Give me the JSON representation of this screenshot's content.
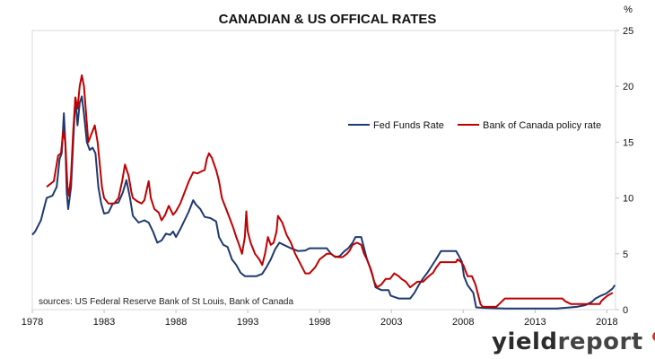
{
  "chart_data": {
    "type": "line",
    "title": "CANADIAN & US OFFICAL RATES",
    "y_unit_label": "%",
    "ylim": [
      0,
      25
    ],
    "y_ticks": [
      0,
      5,
      10,
      15,
      20,
      25
    ],
    "y_axis_side": "right",
    "xlim": [
      1978,
      2018.6
    ],
    "x_ticks": [
      1978,
      1983,
      1988,
      1993,
      1998,
      2003,
      2008,
      2013,
      2018
    ],
    "grid": false,
    "legend_placement": "center-right",
    "source_note": "sources: US Federal Reserve Bank of St Louis, Bank of Canada",
    "series": [
      {
        "name": "Fed Funds Rate",
        "color": "#1f3a6e",
        "points": [
          [
            1978.0,
            6.7
          ],
          [
            1978.2,
            7.0
          ],
          [
            1978.4,
            7.5
          ],
          [
            1978.6,
            8.0
          ],
          [
            1978.8,
            9.0
          ],
          [
            1979.0,
            10.0
          ],
          [
            1979.4,
            10.2
          ],
          [
            1979.7,
            11.0
          ],
          [
            1979.9,
            13.5
          ],
          [
            1980.05,
            14.0
          ],
          [
            1980.2,
            17.6
          ],
          [
            1980.3,
            15.0
          ],
          [
            1980.4,
            10.5
          ],
          [
            1980.5,
            9.0
          ],
          [
            1980.7,
            11.0
          ],
          [
            1980.85,
            15.0
          ],
          [
            1981.0,
            19.0
          ],
          [
            1981.15,
            16.5
          ],
          [
            1981.3,
            18.5
          ],
          [
            1981.45,
            19.1
          ],
          [
            1981.6,
            17.5
          ],
          [
            1981.8,
            15.0
          ],
          [
            1982.0,
            14.3
          ],
          [
            1982.2,
            14.5
          ],
          [
            1982.4,
            14.0
          ],
          [
            1982.6,
            11.0
          ],
          [
            1982.8,
            9.5
          ],
          [
            1983.0,
            8.6
          ],
          [
            1983.3,
            8.7
          ],
          [
            1983.6,
            9.5
          ],
          [
            1984.0,
            9.6
          ],
          [
            1984.3,
            10.5
          ],
          [
            1984.55,
            11.6
          ],
          [
            1984.8,
            10.0
          ],
          [
            1985.0,
            8.4
          ],
          [
            1985.4,
            7.8
          ],
          [
            1985.8,
            8.0
          ],
          [
            1986.1,
            7.8
          ],
          [
            1986.4,
            7.0
          ],
          [
            1986.7,
            6.0
          ],
          [
            1987.0,
            6.2
          ],
          [
            1987.3,
            6.8
          ],
          [
            1987.6,
            6.7
          ],
          [
            1987.8,
            7.0
          ],
          [
            1988.0,
            6.5
          ],
          [
            1988.3,
            7.2
          ],
          [
            1988.6,
            8.0
          ],
          [
            1988.9,
            8.8
          ],
          [
            1989.2,
            9.8
          ],
          [
            1989.4,
            9.4
          ],
          [
            1989.7,
            9.0
          ],
          [
            1990.0,
            8.3
          ],
          [
            1990.4,
            8.2
          ],
          [
            1990.8,
            7.9
          ],
          [
            1991.0,
            6.5
          ],
          [
            1991.3,
            5.8
          ],
          [
            1991.6,
            5.6
          ],
          [
            1991.9,
            4.5
          ],
          [
            1992.2,
            4.0
          ],
          [
            1992.5,
            3.3
          ],
          [
            1992.8,
            3.0
          ],
          [
            1993.2,
            3.0
          ],
          [
            1993.6,
            3.0
          ],
          [
            1994.0,
            3.2
          ],
          [
            1994.3,
            3.8
          ],
          [
            1994.6,
            4.5
          ],
          [
            1994.9,
            5.4
          ],
          [
            1995.2,
            6.0
          ],
          [
            1995.5,
            5.8
          ],
          [
            1996.0,
            5.5
          ],
          [
            1996.5,
            5.25
          ],
          [
            1997.0,
            5.3
          ],
          [
            1997.3,
            5.5
          ],
          [
            1997.9,
            5.5
          ],
          [
            1998.5,
            5.5
          ],
          [
            1998.8,
            5.0
          ],
          [
            1999.1,
            4.7
          ],
          [
            1999.4,
            4.8
          ],
          [
            1999.7,
            5.2
          ],
          [
            2000.0,
            5.5
          ],
          [
            2000.3,
            6.0
          ],
          [
            2000.5,
            6.5
          ],
          [
            2000.9,
            6.5
          ],
          [
            2001.1,
            5.5
          ],
          [
            2001.3,
            4.5
          ],
          [
            2001.5,
            3.8
          ],
          [
            2001.7,
            3.0
          ],
          [
            2001.9,
            2.0
          ],
          [
            2002.3,
            1.75
          ],
          [
            2002.8,
            1.75
          ],
          [
            2002.95,
            1.25
          ],
          [
            2003.5,
            1.0
          ],
          [
            2004.3,
            1.0
          ],
          [
            2004.6,
            1.5
          ],
          [
            2004.9,
            2.2
          ],
          [
            2005.2,
            2.8
          ],
          [
            2005.5,
            3.3
          ],
          [
            2005.8,
            3.9
          ],
          [
            2006.1,
            4.5
          ],
          [
            2006.45,
            5.25
          ],
          [
            2007.5,
            5.25
          ],
          [
            2007.7,
            4.8
          ],
          [
            2007.9,
            4.3
          ],
          [
            2008.05,
            3.0
          ],
          [
            2008.3,
            2.2
          ],
          [
            2008.7,
            1.5
          ],
          [
            2008.9,
            0.2
          ],
          [
            2009.5,
            0.15
          ],
          [
            2011.0,
            0.1
          ],
          [
            2013.0,
            0.1
          ],
          [
            2014.5,
            0.1
          ],
          [
            2015.9,
            0.25
          ],
          [
            2016.5,
            0.4
          ],
          [
            2016.95,
            0.7
          ],
          [
            2017.2,
            1.0
          ],
          [
            2017.5,
            1.2
          ],
          [
            2017.95,
            1.45
          ],
          [
            2018.2,
            1.7
          ],
          [
            2018.4,
            1.9
          ],
          [
            2018.55,
            2.2
          ]
        ]
      },
      {
        "name": "Bank of Canada policy rate",
        "color": "#c00000",
        "points": [
          [
            1979.0,
            11.0
          ],
          [
            1979.5,
            11.5
          ],
          [
            1979.8,
            13.8
          ],
          [
            1980.0,
            14.0
          ],
          [
            1980.15,
            16.0
          ],
          [
            1980.3,
            15.0
          ],
          [
            1980.45,
            11.0
          ],
          [
            1980.55,
            10.2
          ],
          [
            1980.7,
            12.0
          ],
          [
            1980.85,
            16.0
          ],
          [
            1981.0,
            19.0
          ],
          [
            1981.15,
            18.0
          ],
          [
            1981.3,
            20.0
          ],
          [
            1981.45,
            21.0
          ],
          [
            1981.6,
            20.0
          ],
          [
            1981.75,
            17.5
          ],
          [
            1981.9,
            15.0
          ],
          [
            1982.05,
            15.5
          ],
          [
            1982.2,
            16.0
          ],
          [
            1982.35,
            16.5
          ],
          [
            1982.55,
            15.0
          ],
          [
            1982.7,
            13.0
          ],
          [
            1982.85,
            11.0
          ],
          [
            1983.0,
            10.0
          ],
          [
            1983.3,
            9.5
          ],
          [
            1983.7,
            9.5
          ],
          [
            1984.0,
            10.0
          ],
          [
            1984.25,
            11.5
          ],
          [
            1984.45,
            13.0
          ],
          [
            1984.7,
            12.0
          ],
          [
            1984.9,
            10.5
          ],
          [
            1985.0,
            10.0
          ],
          [
            1985.3,
            9.7
          ],
          [
            1985.6,
            9.5
          ],
          [
            1985.8,
            9.8
          ],
          [
            1986.1,
            11.5
          ],
          [
            1986.25,
            10.0
          ],
          [
            1986.5,
            9.0
          ],
          [
            1986.8,
            8.7
          ],
          [
            1987.0,
            8.0
          ],
          [
            1987.25,
            8.5
          ],
          [
            1987.5,
            9.3
          ],
          [
            1987.8,
            8.5
          ],
          [
            1988.0,
            8.8
          ],
          [
            1988.3,
            9.5
          ],
          [
            1988.6,
            10.5
          ],
          [
            1988.9,
            11.5
          ],
          [
            1989.2,
            12.3
          ],
          [
            1989.5,
            12.2
          ],
          [
            1989.8,
            12.4
          ],
          [
            1990.0,
            12.5
          ],
          [
            1990.15,
            13.5
          ],
          [
            1990.3,
            14.0
          ],
          [
            1990.5,
            13.6
          ],
          [
            1990.8,
            12.5
          ],
          [
            1991.0,
            11.5
          ],
          [
            1991.2,
            10.0
          ],
          [
            1991.5,
            9.0
          ],
          [
            1991.8,
            8.0
          ],
          [
            1992.0,
            7.3
          ],
          [
            1992.2,
            6.5
          ],
          [
            1992.4,
            5.8
          ],
          [
            1992.6,
            5.0
          ],
          [
            1992.8,
            6.5
          ],
          [
            1992.9,
            8.8
          ],
          [
            1993.0,
            7.0
          ],
          [
            1993.2,
            6.0
          ],
          [
            1993.5,
            5.0
          ],
          [
            1993.8,
            4.5
          ],
          [
            1994.0,
            4.0
          ],
          [
            1994.2,
            5.0
          ],
          [
            1994.4,
            6.5
          ],
          [
            1994.6,
            5.8
          ],
          [
            1994.8,
            6.0
          ],
          [
            1995.0,
            7.0
          ],
          [
            1995.1,
            8.4
          ],
          [
            1995.4,
            7.8
          ],
          [
            1995.7,
            6.7
          ],
          [
            1996.0,
            6.0
          ],
          [
            1996.3,
            5.0
          ],
          [
            1996.7,
            4.0
          ],
          [
            1997.0,
            3.25
          ],
          [
            1997.3,
            3.25
          ],
          [
            1997.7,
            3.8
          ],
          [
            1998.0,
            4.5
          ],
          [
            1998.5,
            5.0
          ],
          [
            1998.8,
            5.0
          ],
          [
            1999.0,
            4.8
          ],
          [
            1999.3,
            4.7
          ],
          [
            1999.6,
            4.7
          ],
          [
            1999.9,
            5.0
          ],
          [
            2000.1,
            5.3
          ],
          [
            2000.3,
            5.8
          ],
          [
            2000.6,
            6.0
          ],
          [
            2000.9,
            5.8
          ],
          [
            2001.1,
            5.0
          ],
          [
            2001.3,
            4.5
          ],
          [
            2001.6,
            3.5
          ],
          [
            2001.8,
            2.5
          ],
          [
            2002.0,
            2.0
          ],
          [
            2002.3,
            2.25
          ],
          [
            2002.6,
            2.75
          ],
          [
            2002.9,
            2.75
          ],
          [
            2003.2,
            3.25
          ],
          [
            2003.5,
            3.0
          ],
          [
            2003.7,
            2.75
          ],
          [
            2004.0,
            2.5
          ],
          [
            2004.3,
            2.0
          ],
          [
            2004.8,
            2.5
          ],
          [
            2005.2,
            2.5
          ],
          [
            2005.6,
            3.0
          ],
          [
            2005.9,
            3.3
          ],
          [
            2006.1,
            3.75
          ],
          [
            2006.4,
            4.25
          ],
          [
            2007.5,
            4.25
          ],
          [
            2007.6,
            4.5
          ],
          [
            2007.85,
            4.25
          ],
          [
            2008.0,
            4.0
          ],
          [
            2008.3,
            3.0
          ],
          [
            2008.6,
            3.0
          ],
          [
            2008.85,
            2.25
          ],
          [
            2009.0,
            1.5
          ],
          [
            2009.2,
            0.5
          ],
          [
            2009.35,
            0.25
          ],
          [
            2010.3,
            0.25
          ],
          [
            2010.5,
            0.5
          ],
          [
            2010.7,
            0.75
          ],
          [
            2010.9,
            1.0
          ],
          [
            2014.9,
            1.0
          ],
          [
            2015.1,
            0.75
          ],
          [
            2015.5,
            0.5
          ],
          [
            2017.5,
            0.5
          ],
          [
            2017.6,
            0.75
          ],
          [
            2017.8,
            1.0
          ],
          [
            2018.05,
            1.25
          ],
          [
            2018.4,
            1.5
          ]
        ]
      }
    ]
  },
  "branding": {
    "logo_word1": "yield",
    "logo_word2": "report",
    "logo_symbol": "%",
    "logo_accent_color": "#c0392b"
  }
}
